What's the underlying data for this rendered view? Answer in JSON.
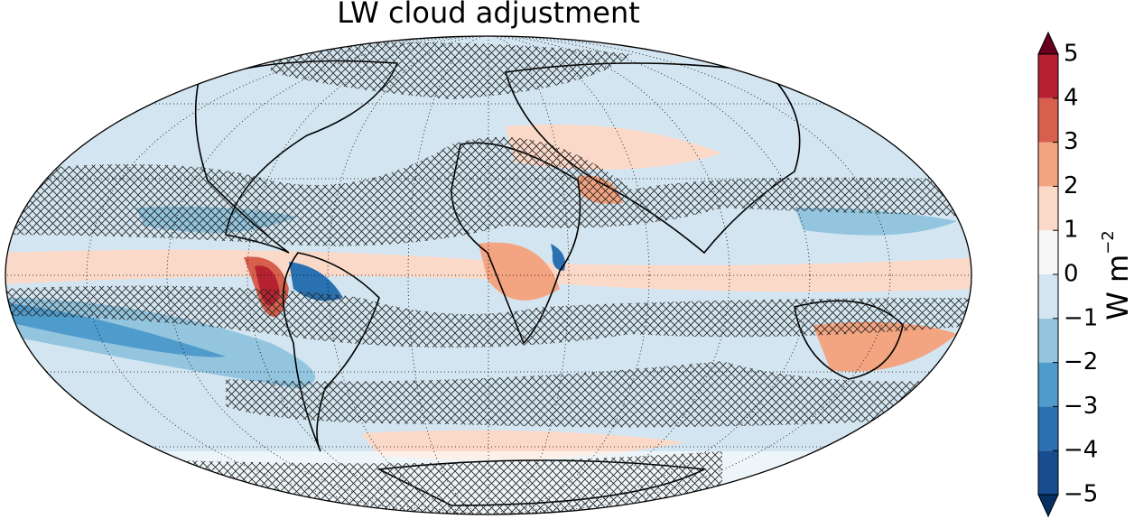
{
  "title": "LW cloud adjustment",
  "colorbar": {
    "label": "W m",
    "label_exponent": "−2",
    "levels": [
      -5,
      -4,
      -3,
      -2,
      -1,
      0,
      1,
      2,
      3,
      4,
      5
    ],
    "colors": [
      "#174c8e",
      "#2a71b2",
      "#4f9bcb",
      "#93c5df",
      "#d3e5f0",
      "#f7f7f7",
      "#fbd9c9",
      "#f3a481",
      "#d6604d",
      "#b72230"
    ],
    "under_color": "#053061",
    "over_color": "#67001f",
    "ticks": [
      {
        "value": -5,
        "label": "−5"
      },
      {
        "value": -4,
        "label": "−4"
      },
      {
        "value": -3,
        "label": "−3"
      },
      {
        "value": -2,
        "label": "−2"
      },
      {
        "value": -1,
        "label": "−1"
      },
      0,
      1,
      2,
      3,
      4,
      5
    ]
  }
}
